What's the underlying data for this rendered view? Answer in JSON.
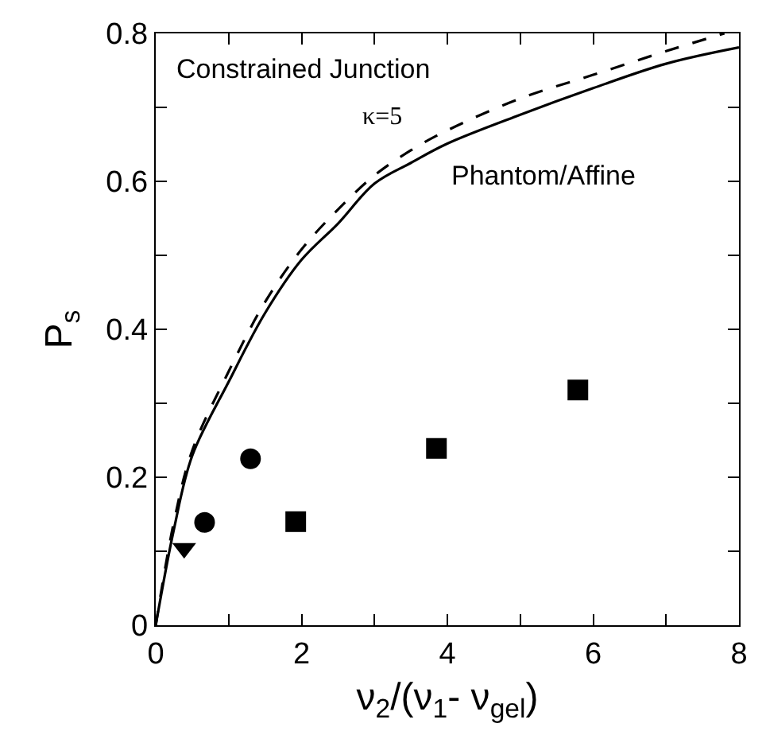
{
  "chart_data": {
    "type": "scatter",
    "xlabel": "ν$_{2}$/(ν$_{1}$- ν$_{gel}$)",
    "ylabel": "P$_{s}$",
    "xlim": [
      0,
      8
    ],
    "ylim": [
      0,
      0.8
    ],
    "xticks": [
      0,
      {
        "value": 1,
        "label": null
      },
      2,
      {
        "value": 3,
        "label": null
      },
      4,
      {
        "value": 5,
        "label": null
      },
      6,
      {
        "value": 7,
        "label": null
      },
      8
    ],
    "yticks": [
      0,
      {
        "value": 0.1,
        "label": null
      },
      0.2,
      {
        "value": 0.3,
        "label": null
      },
      0.4,
      {
        "value": 0.5,
        "label": null
      },
      0.6,
      {
        "value": 0.7,
        "label": null
      },
      0.8
    ],
    "annotations": [
      "Constrained Junction",
      "κ=5",
      "Phantom/Affine"
    ],
    "series": [
      {
        "type": "line",
        "color": "#000000",
        "line_style": "dashed",
        "marker": "none",
        "x": [
          0,
          0.25,
          0.5,
          1,
          1.5,
          2,
          2.5,
          3,
          3.5,
          4,
          5,
          6,
          7,
          7.8
        ],
        "values": [
          0,
          0.14,
          0.236,
          0.343,
          0.437,
          0.508,
          0.562,
          0.608,
          0.642,
          0.669,
          0.712,
          0.744,
          0.776,
          0.8
        ]
      },
      {
        "type": "line",
        "color": "#000000",
        "line_style": "solid",
        "marker": "none",
        "x": [
          0,
          0.25,
          0.5,
          1,
          1.5,
          2,
          2.5,
          3,
          3.5,
          4,
          5,
          6,
          7,
          8
        ],
        "values": [
          0,
          0.13,
          0.229,
          0.329,
          0.422,
          0.494,
          0.543,
          0.597,
          0.625,
          0.651,
          0.69,
          0.726,
          0.759,
          0.781
        ]
      },
      {
        "color": "#000000",
        "marker": "triangle",
        "x": [
          0.39
        ],
        "values": [
          0.104
        ]
      },
      {
        "color": "#000000",
        "marker": "circle",
        "x": [
          0.67,
          1.3
        ],
        "values": [
          0.139,
          0.225
        ]
      },
      {
        "color": "#000000",
        "marker": "square",
        "x": [
          1.92,
          3.85,
          5.79
        ],
        "values": [
          0.14,
          0.239,
          0.318
        ]
      }
    ]
  }
}
